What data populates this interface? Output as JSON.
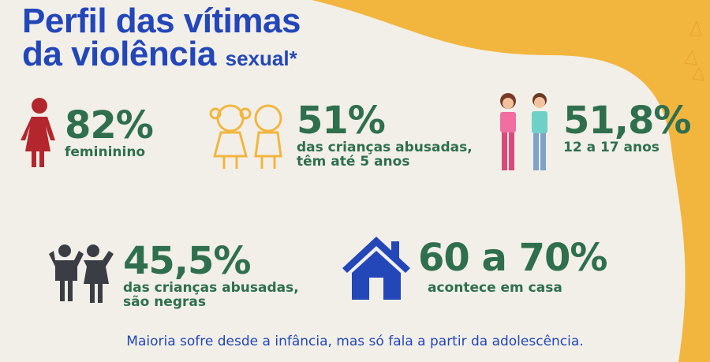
{
  "title": {
    "line1": "Perfil das vítimas",
    "line2": "da violência",
    "suffix": "sexual*"
  },
  "stats": [
    {
      "value": "82%",
      "caption": "femininino",
      "icon": "female-figure-icon"
    },
    {
      "value": "51%",
      "caption": "das crianças abusadas,",
      "caption2": "têm até 5 anos",
      "icon": "children-icon"
    },
    {
      "value": "51,8%",
      "caption": "12 a 17 anos",
      "icon": "teenagers-icon"
    },
    {
      "value": "45,5%",
      "caption": "das crianças abusadas,",
      "caption2": "são negras",
      "icon": "kids-holding-hands-icon"
    },
    {
      "value": "60 a 70%",
      "caption": "acontece em casa",
      "icon": "house-icon"
    }
  ],
  "footer": "Maioria sofre desde a infância, mas só fala a partir da adolescência.",
  "colors": {
    "title": "#2346b9",
    "stat": "#2f6f4e",
    "accent": "#f2b63f",
    "background": "#f1efe8"
  }
}
